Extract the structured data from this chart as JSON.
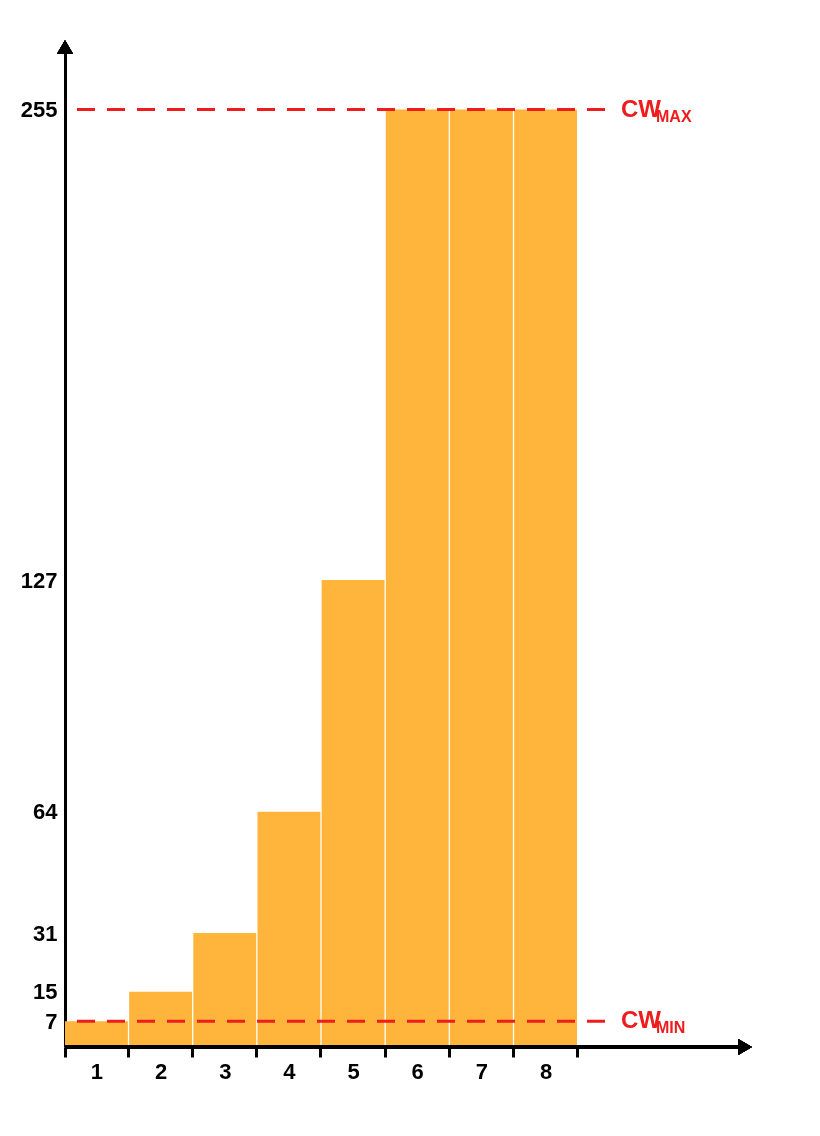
{
  "chart_data": {
    "type": "bar",
    "categories": [
      "1",
      "2",
      "3",
      "4",
      "5",
      "6",
      "7",
      "8"
    ],
    "values": [
      7,
      15,
      31,
      64,
      127,
      255,
      255,
      255
    ],
    "color": "#ffb43c",
    "ylim": [
      0,
      272
    ],
    "yticks": [
      7,
      15,
      31,
      64,
      127,
      255
    ],
    "grid": false,
    "ref_lines": [
      {
        "axis": "y",
        "value": 255,
        "label": "CW$_{MAX}$",
        "color": "#ee1c1c",
        "line_style": "dashed"
      },
      {
        "axis": "y",
        "value": 7,
        "label": "CW$_{MIN}$",
        "color": "#ee1c1c",
        "line_style": "dashed"
      }
    ]
  }
}
